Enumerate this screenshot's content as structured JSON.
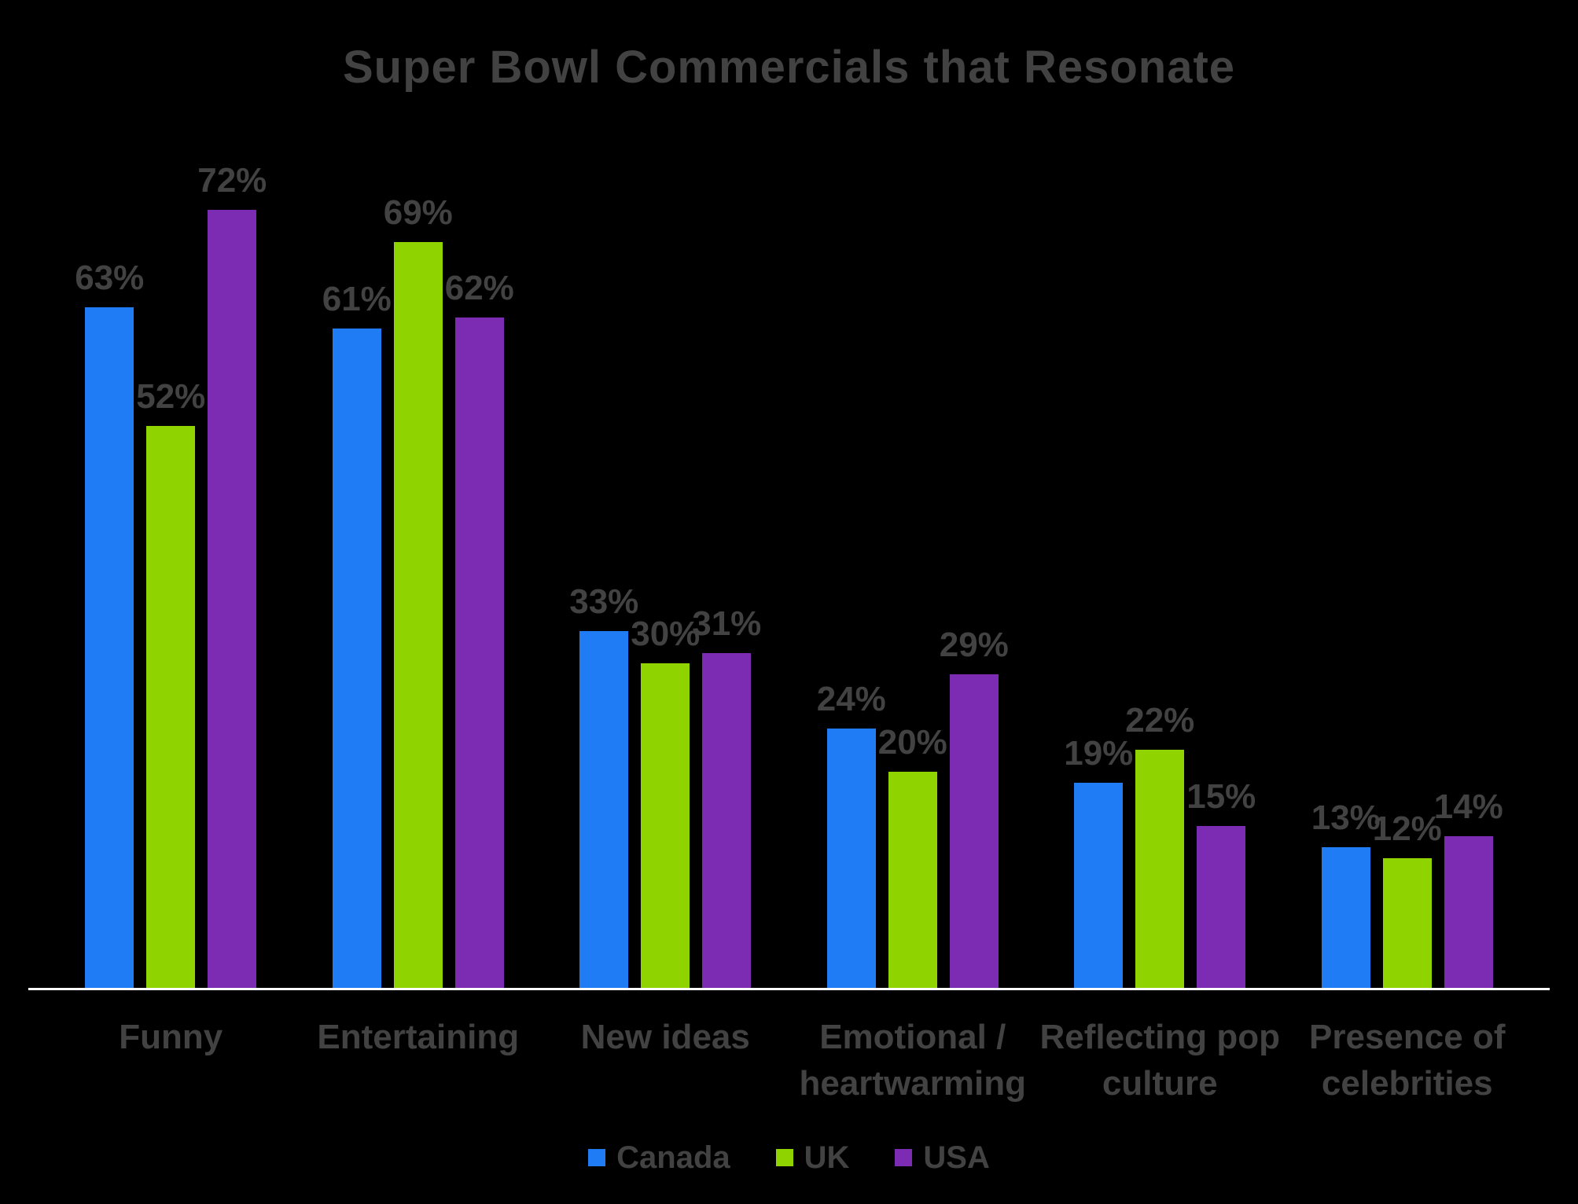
{
  "title": "Super Bowl Commercials that Resonate",
  "chart_data": {
    "type": "bar",
    "title": "Super Bowl Commercials that Resonate",
    "categories": [
      "Funny",
      "Entertaining",
      "New ideas",
      "Emotional / heartwarming",
      "Reflecting pop culture",
      "Presence of celebrities"
    ],
    "category_lines": [
      [
        "Funny"
      ],
      [
        "Entertaining"
      ],
      [
        "New ideas"
      ],
      [
        "Emotional /",
        "heartwarming"
      ],
      [
        "Reflecting pop",
        "culture"
      ],
      [
        "Presence of",
        "celebrities"
      ]
    ],
    "series": [
      {
        "name": "Canada",
        "color": "#1f7cf5",
        "values": [
          63,
          61,
          33,
          24,
          19,
          13
        ]
      },
      {
        "name": "UK",
        "color": "#8fd400",
        "values": [
          52,
          69,
          30,
          20,
          22,
          12
        ]
      },
      {
        "name": "USA",
        "color": "#7b2cb3",
        "values": [
          72,
          62,
          31,
          29,
          15,
          14
        ]
      }
    ],
    "value_suffix": "%",
    "xlabel": "",
    "ylabel": "",
    "ylim": [
      0,
      80
    ],
    "grid": false,
    "legend_position": "bottom",
    "colors": {
      "background": "#000000",
      "text": "#424242",
      "axis_line": "#ffffff"
    }
  }
}
